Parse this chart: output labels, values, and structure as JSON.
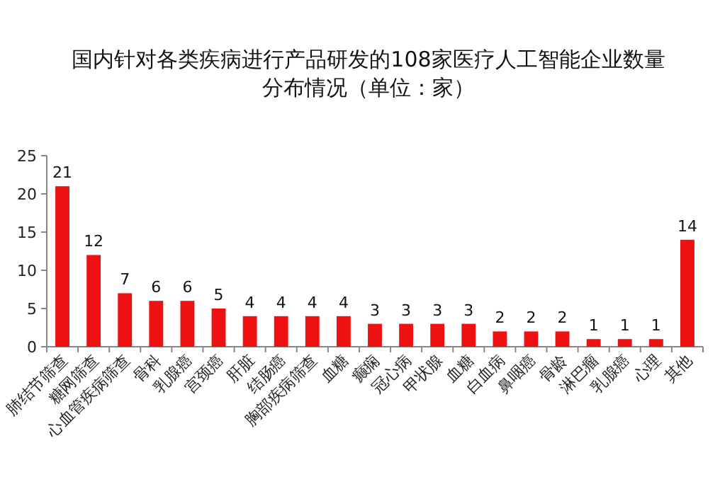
{
  "chart_data": {
    "type": "bar",
    "title": "国内针对各类疾病进行产品研发的108家医疗人工智能企业数量分布情况（单位：家）",
    "categories": [
      "肺结节筛查",
      "糖网筛查",
      "心血管疾病筛查",
      "骨科",
      "乳腺癌",
      "宫颈癌",
      "肝脏",
      "结肠癌",
      "胸部疾病筛查",
      "血糖",
      "癫痫",
      "冠心病",
      "甲状腺",
      "血糖",
      "白血病",
      "鼻咽癌",
      "骨龄",
      "淋巴瘤",
      "乳腺癌",
      "心理",
      "其他"
    ],
    "values": [
      21,
      12,
      7,
      6,
      6,
      5,
      4,
      4,
      4,
      4,
      3,
      3,
      3,
      3,
      2,
      2,
      2,
      1,
      1,
      1,
      14
    ],
    "color": "#ee1111",
    "ylim": [
      0,
      25
    ],
    "yticks": [
      0,
      5,
      10,
      15,
      20,
      25
    ],
    "grid": false,
    "data_labels": true
  }
}
